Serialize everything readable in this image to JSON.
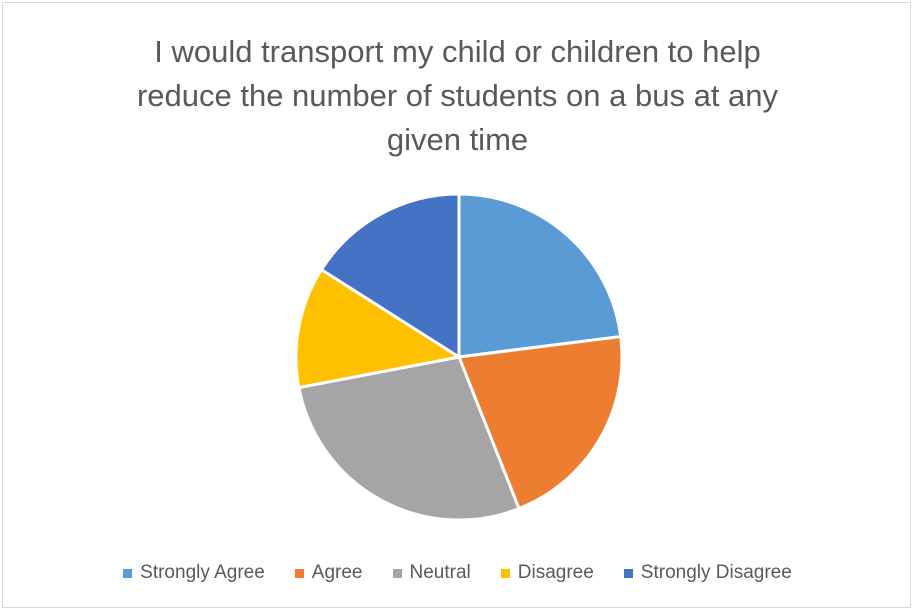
{
  "chart_data": {
    "type": "pie",
    "title_lines": [
      "I would transport my child or children to help",
      "reduce the number of students on a bus at any",
      "given time"
    ],
    "categories": [
      "Strongly Agree",
      "Agree",
      "Neutral",
      "Disagree",
      "Strongly Disagree"
    ],
    "values": [
      23,
      21,
      28,
      12,
      16
    ],
    "colors": [
      "#5b9bd5",
      "#ed7d31",
      "#a5a5a5",
      "#ffc000",
      "#4472c4"
    ],
    "legend_position": "bottom",
    "start_angle": "12 o'clock",
    "direction": "clockwise"
  }
}
